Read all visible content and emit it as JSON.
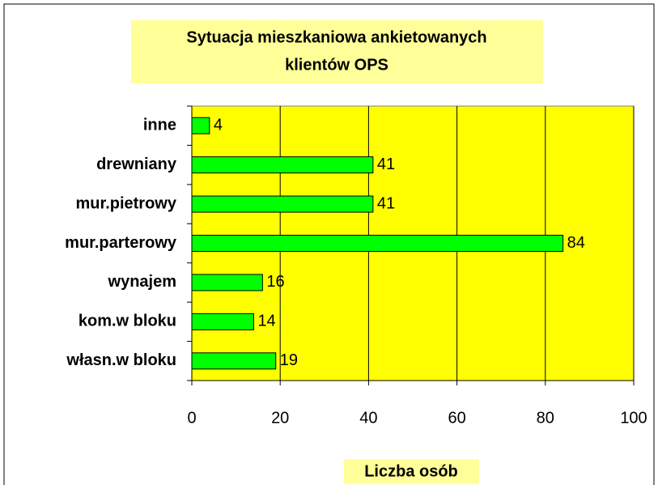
{
  "chart_data": {
    "type": "bar",
    "orientation": "horizontal",
    "title": [
      "Sytuacja mieszkaniowa ankietowanych",
      "klientów OPS"
    ],
    "x_label": "Liczba osób",
    "categories": [
      "inne",
      "drewniany",
      "mur.pietrowy",
      "mur.parterowy",
      "wynajem",
      "kom.w bloku",
      "własn.w bloku"
    ],
    "values": [
      4,
      41,
      41,
      84,
      16,
      14,
      19
    ],
    "color": "#00ff00",
    "plot_background": "#ffff00",
    "label_background": "#ffff99",
    "xlim": [
      0,
      100
    ],
    "xticks": [
      0,
      20,
      40,
      60,
      80,
      100
    ],
    "grid": true
  }
}
